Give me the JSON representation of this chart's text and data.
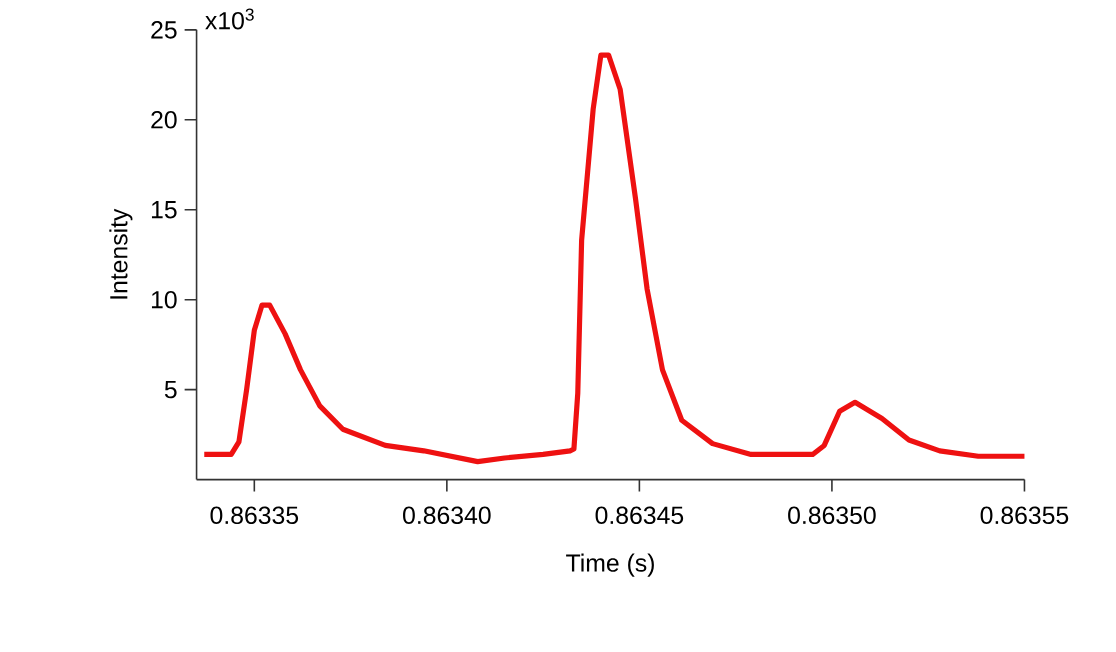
{
  "chart_data": {
    "type": "line",
    "xlabel": "Time (s)",
    "ylabel": "Intensity",
    "color": "#ee1111",
    "x": [
      0.863337,
      0.863344,
      0.863346,
      0.863348,
      0.86335,
      0.863352,
      0.863354,
      0.863358,
      0.863362,
      0.863367,
      0.863373,
      0.863384,
      0.863394,
      0.863408,
      0.863415,
      0.863425,
      0.863432,
      0.863433,
      0.863434,
      0.863435,
      0.863438,
      0.86344,
      0.863442,
      0.863445,
      0.863449,
      0.863452,
      0.863456,
      0.863461,
      0.863469,
      0.863479,
      0.863495,
      0.863498,
      0.863502,
      0.863506,
      0.863513,
      0.86352,
      0.863528,
      0.863538,
      0.86355
    ],
    "values": [
      1.4,
      1.4,
      2.1,
      5.0,
      8.3,
      9.7,
      9.7,
      8.1,
      6.1,
      4.1,
      2.8,
      1.9,
      1.6,
      1.0,
      1.2,
      1.4,
      1.6,
      1.7,
      4.8,
      13.3,
      20.6,
      23.6,
      23.6,
      21.7,
      15.6,
      10.6,
      6.1,
      3.3,
      2.0,
      1.4,
      1.4,
      1.9,
      3.8,
      4.3,
      3.4,
      2.2,
      1.6,
      1.3,
      1.3
    ],
    "xlim": [
      0.863335,
      0.86355
    ],
    "ylim": [
      0,
      25
    ],
    "xticks": [
      0.86335,
      {
        "value": 0.8634,
        "label": "0.86340"
      },
      0.86345,
      {
        "value": 0.8635,
        "label": "0.86350"
      },
      0.86355
    ],
    "yticks": [
      5,
      10,
      15,
      20,
      25
    ],
    "annotations": [
      "x10$^{3}$"
    ],
    "grid": false
  }
}
